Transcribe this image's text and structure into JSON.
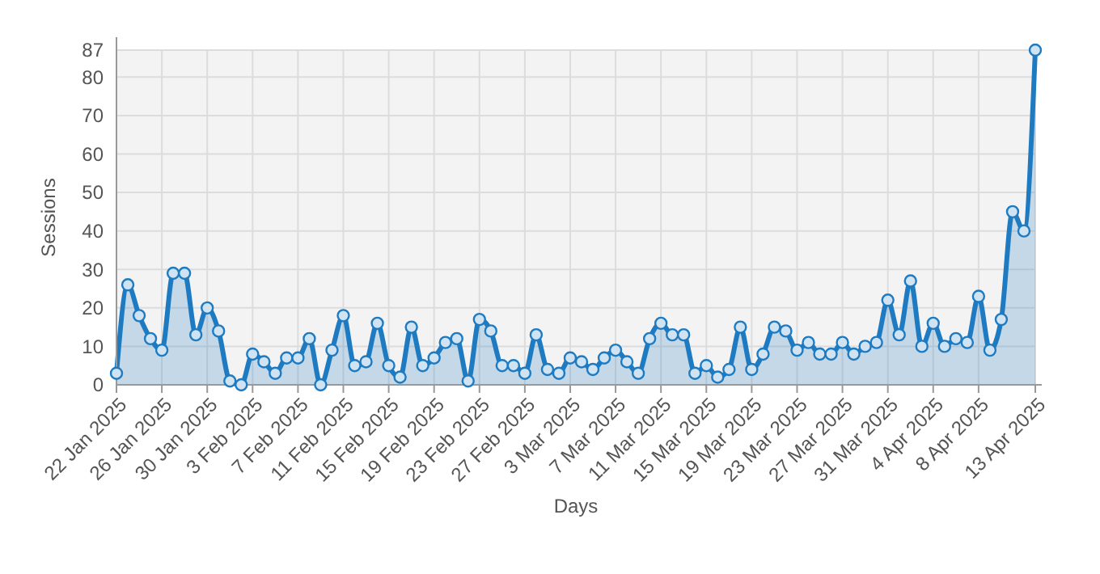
{
  "chart_data": {
    "type": "area",
    "xlabel": "Days",
    "ylabel": "Sessions",
    "series": [
      {
        "color": "#1f7bc1",
        "x": [
          "2025-01-22",
          "2025-01-23",
          "2025-01-24",
          "2025-01-25",
          "2025-01-26",
          "2025-01-27",
          "2025-01-28",
          "2025-01-29",
          "2025-01-30",
          "2025-01-31",
          "2025-02-01",
          "2025-02-02",
          "2025-02-03",
          "2025-02-04",
          "2025-02-05",
          "2025-02-06",
          "2025-02-07",
          "2025-02-08",
          "2025-02-09",
          "2025-02-10",
          "2025-02-11",
          "2025-02-12",
          "2025-02-13",
          "2025-02-14",
          "2025-02-15",
          "2025-02-16",
          "2025-02-17",
          "2025-02-18",
          "2025-02-19",
          "2025-02-20",
          "2025-02-21",
          "2025-02-22",
          "2025-02-23",
          "2025-02-24",
          "2025-02-25",
          "2025-02-26",
          "2025-02-27",
          "2025-02-28",
          "2025-03-01",
          "2025-03-02",
          "2025-03-03",
          "2025-03-04",
          "2025-03-05",
          "2025-03-06",
          "2025-03-07",
          "2025-03-08",
          "2025-03-09",
          "2025-03-10",
          "2025-03-11",
          "2025-03-12",
          "2025-03-13",
          "2025-03-14",
          "2025-03-15",
          "2025-03-16",
          "2025-03-17",
          "2025-03-18",
          "2025-03-19",
          "2025-03-20",
          "2025-03-21",
          "2025-03-22",
          "2025-03-23",
          "2025-03-24",
          "2025-03-25",
          "2025-03-26",
          "2025-03-27",
          "2025-03-28",
          "2025-03-29",
          "2025-03-30",
          "2025-03-31",
          "2025-04-01",
          "2025-04-02",
          "2025-04-03",
          "2025-04-04",
          "2025-04-05",
          "2025-04-06",
          "2025-04-07",
          "2025-04-08",
          "2025-04-09",
          "2025-04-10",
          "2025-04-11",
          "2025-04-12",
          "2025-04-13"
        ],
        "values": [
          3,
          26,
          18,
          12,
          9,
          29,
          29,
          13,
          20,
          14,
          1,
          0,
          8,
          6,
          3,
          7,
          7,
          12,
          0,
          9,
          18,
          5,
          6,
          16,
          5,
          2,
          15,
          5,
          7,
          11,
          12,
          1,
          17,
          14,
          5,
          5,
          3,
          13,
          4,
          3,
          7,
          6,
          4,
          7,
          9,
          6,
          3,
          12,
          16,
          13,
          13,
          3,
          5,
          2,
          4,
          15,
          4,
          8,
          15,
          14,
          9,
          11,
          8,
          8,
          11,
          8,
          10,
          11,
          22,
          13,
          27,
          10,
          16,
          10,
          12,
          11,
          23,
          9,
          17,
          45,
          40,
          87
        ]
      }
    ],
    "xlim": [
      "2025-01-22",
      "2025-04-13"
    ],
    "xticks": [
      {
        "value": "2025-01-22",
        "label": "22 Jan 2025"
      },
      {
        "value": "2025-01-26",
        "label": "26 Jan 2025"
      },
      {
        "value": "2025-01-30",
        "label": "30 Jan 2025"
      },
      {
        "value": "2025-02-03",
        "label": "3 Feb 2025"
      },
      {
        "value": "2025-02-07",
        "label": "7 Feb 2025"
      },
      {
        "value": "2025-02-11",
        "label": "11 Feb 2025"
      },
      {
        "value": "2025-02-15",
        "label": "15 Feb 2025"
      },
      {
        "value": "2025-02-19",
        "label": "19 Feb 2025"
      },
      {
        "value": "2025-02-23",
        "label": "23 Feb 2025"
      },
      {
        "value": "2025-02-27",
        "label": "27 Feb 2025"
      },
      {
        "value": "2025-03-03",
        "label": "3 Mar 2025"
      },
      {
        "value": "2025-03-07",
        "label": "7 Mar 2025"
      },
      {
        "value": "2025-03-11",
        "label": "11 Mar 2025"
      },
      {
        "value": "2025-03-15",
        "label": "15 Mar 2025"
      },
      {
        "value": "2025-03-19",
        "label": "19 Mar 2025"
      },
      {
        "value": "2025-03-23",
        "label": "23 Mar 2025"
      },
      {
        "value": "2025-03-27",
        "label": "27 Mar 2025"
      },
      {
        "value": "2025-03-31",
        "label": "31 Mar 2025"
      },
      {
        "value": "2025-04-04",
        "label": "4 Apr 2025"
      },
      {
        "value": "2025-04-08",
        "label": "8 Apr 2025"
      },
      {
        "value": "2025-04-13",
        "label": "13 Apr 2025"
      }
    ],
    "ylim": [
      0,
      87
    ],
    "yticks": [
      0,
      10,
      20,
      30,
      40,
      50,
      60,
      70,
      80,
      87
    ],
    "grid": true,
    "marker": "circle",
    "line_style": "solid"
  }
}
